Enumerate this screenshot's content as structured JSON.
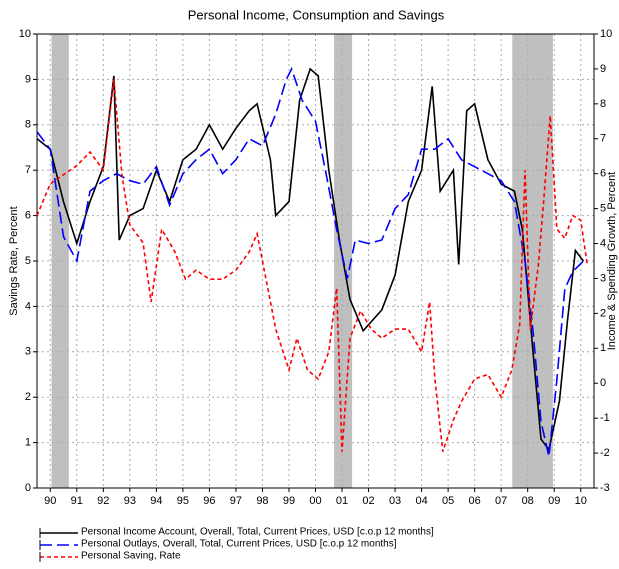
{
  "chart_data": {
    "type": "line",
    "title": "Personal Income, Consumption and Savings",
    "ylabel": "Savings Rate, Percent",
    "y2label": "Income & Spending Growth, Percent",
    "xlim": [
      1990,
      2011
    ],
    "xticks": [
      {
        "value": 1990.5,
        "label": "90"
      },
      {
        "value": 1991.5,
        "label": "91"
      },
      {
        "value": 1992.5,
        "label": "92"
      },
      {
        "value": 1993.5,
        "label": "93"
      },
      {
        "value": 1994.5,
        "label": "94"
      },
      {
        "value": 1995.5,
        "label": "95"
      },
      {
        "value": 1996.5,
        "label": "96"
      },
      {
        "value": 1997.5,
        "label": "97"
      },
      {
        "value": 1998.5,
        "label": "98"
      },
      {
        "value": 1999.5,
        "label": "99"
      },
      {
        "value": 2000.5,
        "label": "00"
      },
      {
        "value": 2001.5,
        "label": "01"
      },
      {
        "value": 2002.5,
        "label": "02"
      },
      {
        "value": 2003.5,
        "label": "03"
      },
      {
        "value": 2004.5,
        "label": "04"
      },
      {
        "value": 2005.5,
        "label": "05"
      },
      {
        "value": 2006.5,
        "label": "06"
      },
      {
        "value": 2007.5,
        "label": "07"
      },
      {
        "value": 2008.5,
        "label": "08"
      },
      {
        "value": 2009.5,
        "label": "09"
      },
      {
        "value": 2010.5,
        "label": "10"
      }
    ],
    "ylim": [
      0,
      10
    ],
    "yticks": [
      0,
      1,
      2,
      3,
      4,
      5,
      6,
      7,
      8,
      9,
      10
    ],
    "y2lim": [
      -3,
      10
    ],
    "y2ticks": [
      -3,
      -2,
      -1,
      0,
      1,
      2,
      3,
      4,
      5,
      6,
      7,
      8,
      9,
      10
    ],
    "grid": true,
    "shade_color": "#bfbfbf",
    "shaded_periods": [
      [
        1990.55,
        1991.2
      ],
      [
        2001.2,
        2001.88
      ],
      [
        2007.92,
        2009.45
      ]
    ],
    "series": [
      {
        "name": "Personal Income Account, Overall, Total, Current Prices, USD [c.o.p 12 months]",
        "color": "#000000",
        "dash": "none",
        "axis": "y2",
        "x": [
          1990.0,
          1990.5,
          1991.0,
          1991.5,
          1992.0,
          1992.5,
          1992.9,
          1993.1,
          1993.5,
          1994.0,
          1994.5,
          1995.0,
          1995.5,
          1996.0,
          1996.5,
          1997.0,
          1997.5,
          1998.0,
          1998.3,
          1998.8,
          1999.0,
          1999.5,
          1999.9,
          2000.3,
          2000.6,
          2001.0,
          2001.4,
          2001.8,
          2002.3,
          2003.0,
          2003.5,
          2004.0,
          2004.5,
          2004.9,
          2005.2,
          2005.7,
          2005.9,
          2006.2,
          2006.5,
          2007.0,
          2007.5,
          2008.0,
          2008.3,
          2008.7,
          2009.0,
          2009.3,
          2009.7,
          2010.0,
          2010.3,
          2010.6
        ],
        "values": [
          7.0,
          6.7,
          5.2,
          4.0,
          5.2,
          6.2,
          8.8,
          4.1,
          4.8,
          5.0,
          6.1,
          5.2,
          6.4,
          6.7,
          7.4,
          6.7,
          7.3,
          7.8,
          8.0,
          6.4,
          4.8,
          5.2,
          8.1,
          9.0,
          8.8,
          6.1,
          4.1,
          2.4,
          1.5,
          2.1,
          3.1,
          5.2,
          6.1,
          8.5,
          5.5,
          6.1,
          3.4,
          7.8,
          8.0,
          6.4,
          5.7,
          5.5,
          4.4,
          0.9,
          -1.6,
          -1.9,
          -0.5,
          1.8,
          3.8,
          3.5
        ]
      },
      {
        "name": "Personal Outlays, Overall, Total, Current Prices, USD [c.o.p 12 months]",
        "color": "#0000ff",
        "dash": "12 5",
        "axis": "y2",
        "x": [
          1990.0,
          1990.5,
          1991.0,
          1991.5,
          1992.0,
          1992.5,
          1993.0,
          1993.5,
          1994.0,
          1994.5,
          1995.0,
          1995.5,
          1996.0,
          1996.5,
          1997.0,
          1997.5,
          1998.0,
          1998.5,
          1999.0,
          1999.4,
          1999.6,
          2000.0,
          2000.5,
          2000.9,
          2001.3,
          2001.7,
          2002.0,
          2002.5,
          2003.0,
          2003.5,
          2004.0,
          2004.5,
          2005.0,
          2005.5,
          2006.0,
          2006.5,
          2007.0,
          2007.5,
          2008.0,
          2008.4,
          2008.7,
          2009.0,
          2009.3,
          2009.6,
          2009.9,
          2010.2,
          2010.6
        ],
        "values": [
          7.2,
          6.7,
          4.2,
          3.5,
          5.5,
          5.8,
          6.0,
          5.8,
          5.7,
          6.2,
          5.1,
          6.0,
          6.4,
          6.7,
          6.0,
          6.4,
          7.0,
          6.8,
          7.7,
          8.7,
          9.0,
          8.1,
          7.5,
          6.0,
          4.4,
          3.0,
          4.1,
          4.0,
          4.1,
          5.0,
          5.4,
          6.7,
          6.7,
          7.0,
          6.4,
          6.2,
          6.0,
          5.8,
          5.2,
          3.5,
          1.5,
          -1.1,
          -2.1,
          0.1,
          2.7,
          3.2,
          3.5
        ]
      },
      {
        "name": "Personal Saving, Rate",
        "color": "#ff0000",
        "dash": "4 3",
        "axis": "y",
        "x": [
          1990.0,
          1990.5,
          1991.0,
          1991.5,
          1992.0,
          1992.5,
          1992.9,
          1993.2,
          1993.5,
          1994.0,
          1994.3,
          1994.7,
          1995.2,
          1995.6,
          1996.0,
          1996.5,
          1997.0,
          1997.5,
          1998.0,
          1998.3,
          1998.7,
          1999.0,
          1999.5,
          1999.8,
          2000.2,
          2000.6,
          2001.0,
          2001.3,
          2001.5,
          2001.8,
          2002.2,
          2002.6,
          2003.0,
          2003.5,
          2004.0,
          2004.5,
          2004.8,
          2005.0,
          2005.3,
          2005.7,
          2006.0,
          2006.5,
          2007.0,
          2007.5,
          2007.9,
          2008.2,
          2008.4,
          2008.6,
          2008.9,
          2009.1,
          2009.35,
          2009.6,
          2009.9,
          2010.2,
          2010.5,
          2010.75
        ],
        "values": [
          6.0,
          6.7,
          6.9,
          7.1,
          7.4,
          7.0,
          9.0,
          6.9,
          5.8,
          5.4,
          4.1,
          5.7,
          5.2,
          4.6,
          4.8,
          4.6,
          4.6,
          4.8,
          5.2,
          5.6,
          4.4,
          3.5,
          2.6,
          3.3,
          2.6,
          2.4,
          3.0,
          4.4,
          0.8,
          3.3,
          3.9,
          3.5,
          3.3,
          3.5,
          3.5,
          3.0,
          4.1,
          2.4,
          0.8,
          1.5,
          1.9,
          2.4,
          2.5,
          2.0,
          2.6,
          3.6,
          7.0,
          3.5,
          4.9,
          6.3,
          8.2,
          5.7,
          5.5,
          6.0,
          5.9,
          4.9
        ]
      }
    ]
  }
}
